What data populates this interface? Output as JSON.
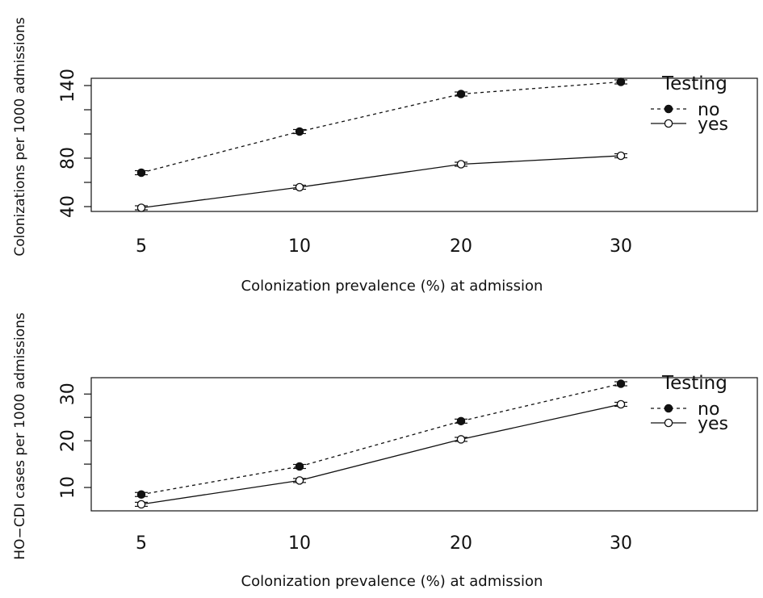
{
  "chart_data": [
    {
      "type": "line",
      "xlabel": "Colonization prevalence (%) at admission",
      "ylabel": "Colonizations per 1000 admissions",
      "categories": [
        "5",
        "10",
        "20",
        "30"
      ],
      "ylim": [
        36,
        146
      ],
      "yticks": [
        40,
        60,
        80,
        100,
        120,
        140
      ],
      "ytick_labels": [
        "40",
        "",
        "80",
        "",
        "",
        "140"
      ],
      "legend": {
        "title": "Testing",
        "position": "top-right"
      },
      "error_bars": true,
      "grid": false,
      "series": [
        {
          "name": "no",
          "style": "dashed",
          "marker": "filled-circle",
          "values": [
            68,
            102,
            133,
            143
          ]
        },
        {
          "name": "yes",
          "style": "solid",
          "marker": "open-circle",
          "values": [
            39,
            56,
            75,
            82
          ]
        }
      ]
    },
    {
      "type": "line",
      "xlabel": "Colonization prevalence (%) at admission",
      "ylabel": "HO−CDI cases per 1000 admissions",
      "categories": [
        "5",
        "10",
        "20",
        "30"
      ],
      "ylim": [
        5,
        33.5
      ],
      "yticks": [
        10,
        15,
        20,
        25,
        30
      ],
      "ytick_labels": [
        "10",
        "",
        "20",
        "",
        "30"
      ],
      "legend": {
        "title": "Testing",
        "position": "top-right"
      },
      "error_bars": true,
      "grid": false,
      "series": [
        {
          "name": "no",
          "style": "dashed",
          "marker": "filled-circle",
          "values": [
            8.5,
            14.5,
            24.2,
            32.2
          ]
        },
        {
          "name": "yes",
          "style": "solid",
          "marker": "open-circle",
          "values": [
            6.4,
            11.5,
            20.3,
            27.8
          ]
        }
      ]
    }
  ]
}
